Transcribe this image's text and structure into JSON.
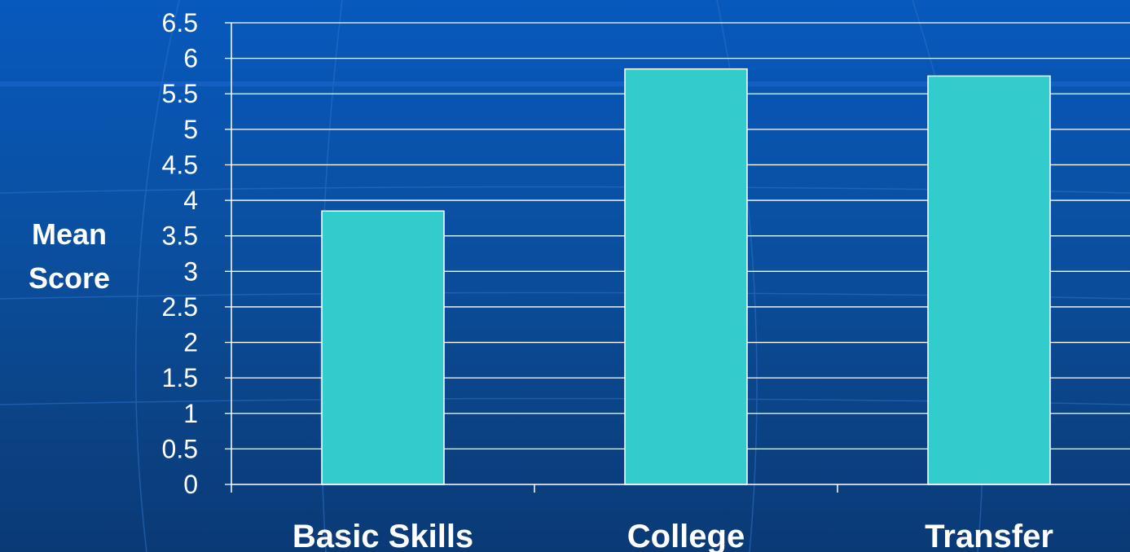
{
  "chart_data": {
    "type": "bar",
    "categories": [
      "Basic Skills",
      "College",
      "Transfer"
    ],
    "values": [
      3.85,
      5.85,
      5.75
    ],
    "ylabel": [
      "Mean",
      "Score"
    ],
    "xlabel": "",
    "ylim": [
      0,
      6.5
    ],
    "yticks": [
      "0",
      "0.5",
      "1",
      "1.5",
      "2",
      "2.5",
      "3",
      "3.5",
      "4",
      "4.5",
      "5",
      "5.5",
      "6",
      "6.5"
    ],
    "grid": true,
    "colors": {
      "bar_fill": "#33cccc",
      "bar_stroke": "#ffffff",
      "gridline": "#ffffff",
      "text": "#ffffff"
    }
  }
}
